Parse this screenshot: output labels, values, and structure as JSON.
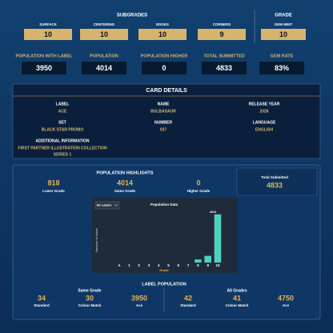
{
  "subgrades": {
    "title": "SUBGRADES",
    "items": [
      {
        "label": "SURFACE",
        "value": 10
      },
      {
        "label": "CENTERING",
        "value": 10
      },
      {
        "label": "EDGES",
        "value": 10
      },
      {
        "label": "CORNERS",
        "value": 9
      }
    ]
  },
  "grade": {
    "title": "GRADE",
    "label": "GEM MINT",
    "value": 10
  },
  "stats": [
    {
      "label": "POPULATION WITH LABEL",
      "value": 3950
    },
    {
      "label": "POPULATION",
      "value": 4014
    },
    {
      "label": "POPULATION HIGHER",
      "value": 0
    },
    {
      "label": "TOTAL SUBMITTED",
      "value": 4833
    },
    {
      "label": "GEM RATE",
      "value": "83%"
    }
  ],
  "card_details": {
    "title": "CARD DETAILS",
    "fields": [
      {
        "label": "LABEL",
        "value": "ACE"
      },
      {
        "label": "NAME",
        "value": "BULBASAUR"
      },
      {
        "label": "RELEASE YEAR",
        "value": "2026"
      },
      {
        "label": "SET",
        "value": "BLACK STAR PROMO"
      },
      {
        "label": "NUMBER",
        "value": "037"
      },
      {
        "label": "LANGUAGE",
        "value": "ENGLISH"
      },
      {
        "label": "ADDITIONAL INFORMATION",
        "value": [
          "FIRST PARTNER ILLUSTRATION COLLECTION",
          "SERIES 1"
        ]
      }
    ]
  },
  "highlights": {
    "title": "POPULATION HIGHLIGHTS",
    "items": [
      {
        "value": 818,
        "label": "Lower Grade"
      },
      {
        "value": 4014,
        "label": "Same Grade"
      },
      {
        "value": 0,
        "label": "Higher Grade"
      }
    ],
    "total": {
      "label": "Total Submitted",
      "value": 4833
    }
  },
  "chart_data": {
    "type": "bar",
    "title": "Population Data",
    "filter": "All Labels",
    "x_label": "Grade",
    "y_label": "Number of slabs",
    "categories": [
      "A",
      "1",
      "2",
      "3",
      "4",
      "5",
      "6",
      "7",
      "8",
      "9",
      "10"
    ],
    "values": [
      0,
      0,
      0,
      0,
      0,
      0,
      0,
      0,
      258,
      560,
      4014
    ],
    "color": "#4fd1c0",
    "ylim": [
      0,
      4400
    ]
  },
  "label_population": {
    "title": "LABEL POPULATION",
    "groups": [
      {
        "title": "Same Grade",
        "items": [
          {
            "value": 34,
            "label": "Standard"
          },
          {
            "value": 30,
            "label": "Colour Match"
          },
          {
            "value": 3950,
            "label": "Ace"
          }
        ]
      },
      {
        "title": "All Grades",
        "items": [
          {
            "value": 42,
            "label": "Standard"
          },
          {
            "value": 41,
            "label": "Colour Match"
          },
          {
            "value": 4750,
            "label": "Ace"
          }
        ]
      }
    ]
  }
}
